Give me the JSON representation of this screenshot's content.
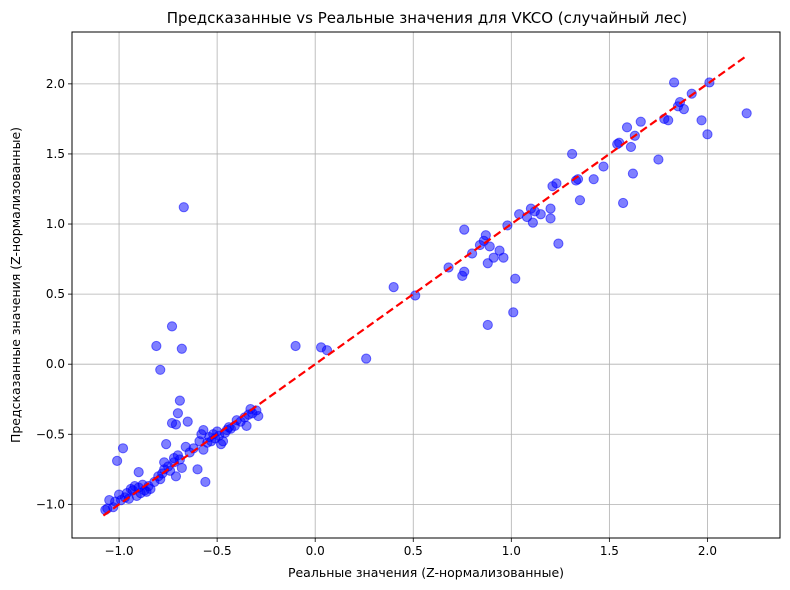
{
  "chart_data": {
    "type": "scatter",
    "title": "Предсказанные vs Реальные значения для VKCO (случайный лес)",
    "xlabel": "Реальные значения (Z-нормализованные)",
    "ylabel": "Предсказанные значения (Z-нормализованные)",
    "xlim": [
      -1.24,
      2.37
    ],
    "ylim": [
      -1.24,
      2.37
    ],
    "xticks": [
      -1.0,
      -0.5,
      0.0,
      0.5,
      1.0,
      1.5,
      2.0
    ],
    "yticks": [
      -1.0,
      -0.5,
      0.0,
      0.5,
      1.0,
      1.5,
      2.0
    ],
    "xtick_labels": [
      "−1.0",
      "−0.5",
      "0.0",
      "0.5",
      "1.0",
      "1.5",
      "2.0"
    ],
    "ytick_labels": [
      "−1.0",
      "−0.5",
      "0.0",
      "0.5",
      "1.0",
      "1.5",
      "2.0"
    ],
    "grid": true,
    "colors": {
      "points": "#0000ff",
      "reference_line": "#ff0000"
    },
    "reference_line": {
      "x": [
        -1.08,
        2.2
      ],
      "y": [
        -1.08,
        2.2
      ],
      "style": "dashed"
    },
    "points": [
      [
        -1.07,
        -1.04
      ],
      [
        -1.06,
        -1.03
      ],
      [
        -1.05,
        -0.97
      ],
      [
        -1.03,
        -1.02
      ],
      [
        -1.02,
        -0.98
      ],
      [
        -1.01,
        -0.69
      ],
      [
        -1.0,
        -0.93
      ],
      [
        -0.99,
        -0.97
      ],
      [
        -0.98,
        -0.6
      ],
      [
        -0.97,
        -0.95
      ],
      [
        -0.96,
        -0.92
      ],
      [
        -0.95,
        -0.96
      ],
      [
        -0.94,
        -0.89
      ],
      [
        -0.93,
        -0.9
      ],
      [
        -0.92,
        -0.87
      ],
      [
        -0.91,
        -0.94
      ],
      [
        -0.9,
        -0.77
      ],
      [
        -0.9,
        -0.88
      ],
      [
        -0.89,
        -0.92
      ],
      [
        -0.88,
        -0.86
      ],
      [
        -0.87,
        -0.9
      ],
      [
        -0.86,
        -0.91
      ],
      [
        -0.85,
        -0.87
      ],
      [
        -0.84,
        -0.89
      ],
      [
        -0.82,
        -0.84
      ],
      [
        -0.81,
        0.13
      ],
      [
        -0.8,
        -0.8
      ],
      [
        -0.79,
        -0.04
      ],
      [
        -0.79,
        -0.82
      ],
      [
        -0.78,
        -0.78
      ],
      [
        -0.77,
        -0.75
      ],
      [
        -0.77,
        -0.7
      ],
      [
        -0.76,
        -0.57
      ],
      [
        -0.75,
        -0.73
      ],
      [
        -0.74,
        -0.76
      ],
      [
        -0.73,
        -0.42
      ],
      [
        -0.73,
        0.27
      ],
      [
        -0.72,
        -0.7
      ],
      [
        -0.72,
        -0.67
      ],
      [
        -0.71,
        -0.8
      ],
      [
        -0.71,
        -0.43
      ],
      [
        -0.7,
        -0.65
      ],
      [
        -0.7,
        -0.35
      ],
      [
        -0.69,
        -0.26
      ],
      [
        -0.69,
        -0.68
      ],
      [
        -0.68,
        -0.74
      ],
      [
        -0.68,
        0.11
      ],
      [
        -0.67,
        1.12
      ],
      [
        -0.66,
        -0.59
      ],
      [
        -0.65,
        -0.41
      ],
      [
        -0.64,
        -0.63
      ],
      [
        -0.62,
        -0.6
      ],
      [
        -0.6,
        -0.75
      ],
      [
        -0.59,
        -0.55
      ],
      [
        -0.58,
        -0.5
      ],
      [
        -0.57,
        -0.61
      ],
      [
        -0.57,
        -0.47
      ],
      [
        -0.56,
        -0.84
      ],
      [
        -0.55,
        -0.56
      ],
      [
        -0.54,
        -0.52
      ],
      [
        -0.53,
        -0.55
      ],
      [
        -0.52,
        -0.5
      ],
      [
        -0.51,
        -0.53
      ],
      [
        -0.5,
        -0.48
      ],
      [
        -0.49,
        -0.51
      ],
      [
        -0.48,
        -0.57
      ],
      [
        -0.47,
        -0.55
      ],
      [
        -0.46,
        -0.49
      ],
      [
        -0.45,
        -0.47
      ],
      [
        -0.44,
        -0.45
      ],
      [
        -0.43,
        -0.46
      ],
      [
        -0.41,
        -0.44
      ],
      [
        -0.4,
        -0.4
      ],
      [
        -0.38,
        -0.41
      ],
      [
        -0.36,
        -0.38
      ],
      [
        -0.35,
        -0.44
      ],
      [
        -0.34,
        -0.36
      ],
      [
        -0.33,
        -0.32
      ],
      [
        -0.32,
        -0.35
      ],
      [
        -0.3,
        -0.33
      ],
      [
        -0.29,
        -0.37
      ],
      [
        -0.1,
        0.13
      ],
      [
        0.03,
        0.12
      ],
      [
        0.06,
        0.1
      ],
      [
        0.26,
        0.04
      ],
      [
        0.4,
        0.55
      ],
      [
        0.51,
        0.49
      ],
      [
        0.68,
        0.69
      ],
      [
        0.75,
        0.63
      ],
      [
        0.76,
        0.66
      ],
      [
        0.76,
        0.96
      ],
      [
        0.8,
        0.79
      ],
      [
        0.84,
        0.85
      ],
      [
        0.86,
        0.88
      ],
      [
        0.87,
        0.92
      ],
      [
        0.88,
        0.72
      ],
      [
        0.88,
        0.28
      ],
      [
        0.89,
        0.84
      ],
      [
        0.91,
        0.76
      ],
      [
        0.94,
        0.81
      ],
      [
        0.96,
        0.76
      ],
      [
        0.98,
        0.99
      ],
      [
        1.01,
        0.37
      ],
      [
        1.02,
        0.61
      ],
      [
        1.04,
        1.07
      ],
      [
        1.08,
        1.05
      ],
      [
        1.1,
        1.11
      ],
      [
        1.11,
        1.01
      ],
      [
        1.12,
        1.09
      ],
      [
        1.15,
        1.07
      ],
      [
        1.2,
        1.04
      ],
      [
        1.2,
        1.11
      ],
      [
        1.21,
        1.27
      ],
      [
        1.23,
        1.29
      ],
      [
        1.24,
        0.86
      ],
      [
        1.31,
        1.5
      ],
      [
        1.33,
        1.31
      ],
      [
        1.34,
        1.32
      ],
      [
        1.35,
        1.17
      ],
      [
        1.42,
        1.32
      ],
      [
        1.47,
        1.41
      ],
      [
        1.54,
        1.57
      ],
      [
        1.55,
        1.58
      ],
      [
        1.57,
        1.15
      ],
      [
        1.59,
        1.69
      ],
      [
        1.61,
        1.55
      ],
      [
        1.62,
        1.36
      ],
      [
        1.63,
        1.63
      ],
      [
        1.66,
        1.73
      ],
      [
        1.75,
        1.46
      ],
      [
        1.78,
        1.75
      ],
      [
        1.8,
        1.74
      ],
      [
        1.83,
        2.01
      ],
      [
        1.85,
        1.84
      ],
      [
        1.86,
        1.87
      ],
      [
        1.88,
        1.82
      ],
      [
        1.92,
        1.93
      ],
      [
        1.97,
        1.74
      ],
      [
        2.0,
        1.64
      ],
      [
        2.01,
        2.01
      ],
      [
        2.2,
        1.79
      ]
    ]
  }
}
